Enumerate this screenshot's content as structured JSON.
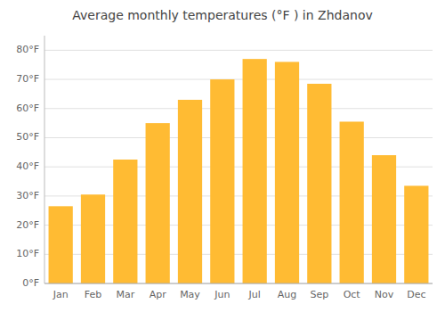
{
  "chart_data": {
    "type": "bar",
    "title": "Average monthly temperatures (°F ) in Zhdanov",
    "categories": [
      "Jan",
      "Feb",
      "Mar",
      "Apr",
      "May",
      "Jun",
      "Jul",
      "Aug",
      "Sep",
      "Oct",
      "Nov",
      "Dec"
    ],
    "values": [
      26.5,
      30.5,
      42.5,
      55.0,
      63.0,
      70.0,
      77.0,
      76.0,
      68.5,
      55.5,
      44.0,
      33.5
    ],
    "color": "#FFBB33",
    "ylim": [
      0,
      85
    ],
    "yticks": [
      {
        "value": 0,
        "label": "0°F"
      },
      {
        "value": 10,
        "label": "10°F"
      },
      {
        "value": 20,
        "label": "20°F"
      },
      {
        "value": 30,
        "label": "30°F"
      },
      {
        "value": 40,
        "label": "40°F"
      },
      {
        "value": 50,
        "label": "50°F"
      },
      {
        "value": 60,
        "label": "60°F"
      },
      {
        "value": 70,
        "label": "70°F"
      },
      {
        "value": 80,
        "label": "80°F"
      }
    ],
    "grid": true
  }
}
